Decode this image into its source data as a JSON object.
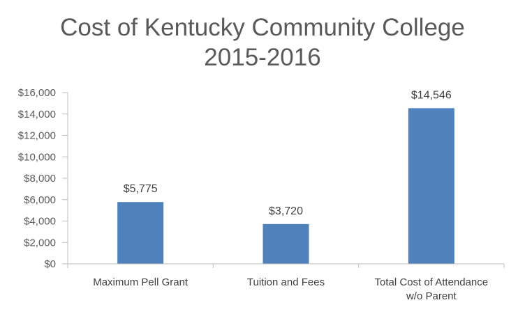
{
  "chart_data": {
    "type": "bar",
    "title": "Cost of Kentucky Community College 2015-2016",
    "title_lines": [
      "Cost of Kentucky Community College",
      "2015-2016"
    ],
    "categories": [
      "Maximum Pell Grant",
      "Tuition and Fees",
      "Total Cost of Attendance w/o Parent"
    ],
    "category_lines": [
      [
        "Maximum Pell Grant"
      ],
      [
        "Tuition and Fees"
      ],
      [
        "Total Cost of Attendance",
        "w/o Parent"
      ]
    ],
    "values": [
      5775,
      3720,
      14546
    ],
    "data_labels": [
      "$5,775",
      "$3,720",
      "$14,546"
    ],
    "ylim": [
      0,
      16000
    ],
    "yticks": [
      0,
      2000,
      4000,
      6000,
      8000,
      10000,
      12000,
      14000,
      16000
    ],
    "ytick_labels": [
      "$0",
      "$2,000",
      "$4,000",
      "$6,000",
      "$8,000",
      "$10,000",
      "$12,000",
      "$14,000",
      "$16,000"
    ],
    "xlabel": "",
    "ylabel": "",
    "grid": false,
    "legend": "none",
    "bar_color": "#4f81bd"
  }
}
